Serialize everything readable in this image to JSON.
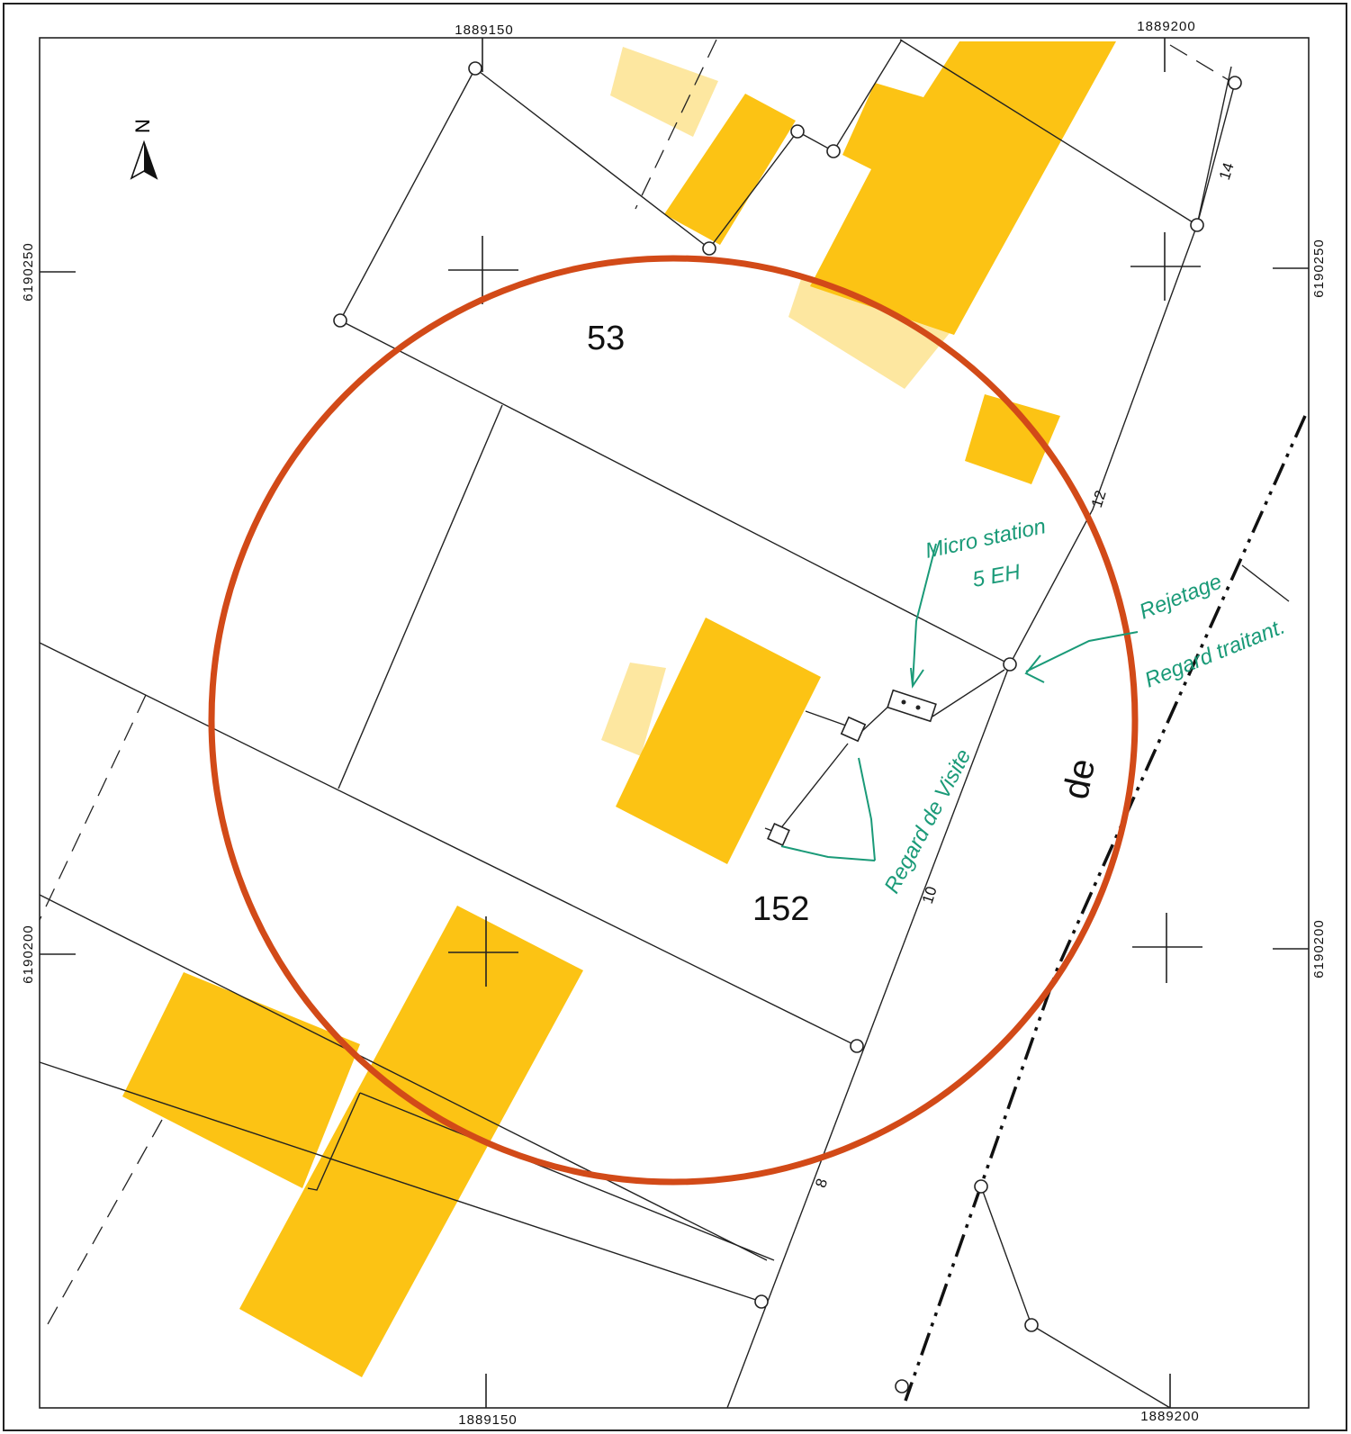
{
  "coordinates": {
    "x_top_left": "1889150",
    "x_top_right": "1889200",
    "x_bottom_left": "1889150",
    "x_bottom_right": "1889200",
    "y_left_top": "6190250",
    "y_left_bottom": "6190200",
    "y_right_top": "6190250",
    "y_right_bottom": "6190200"
  },
  "north_arrow_label": "N",
  "parcels": {
    "upper": "53",
    "lower": "152"
  },
  "road_label": "de",
  "street_numbers": [
    "14",
    "12",
    "10",
    "8"
  ],
  "annotations": {
    "micro_station_line1": "Micro station",
    "micro_station_line2": "5 EH",
    "rejet_line1": "Rejetage",
    "rejet_line2": "Regard traitant.",
    "regard_visite": "Regard de Visite"
  },
  "colors": {
    "building": "#fcc314",
    "annex": "#fde7a0",
    "buffer_circle": "#d24a18",
    "annotation_ink": "#1a9a78"
  }
}
